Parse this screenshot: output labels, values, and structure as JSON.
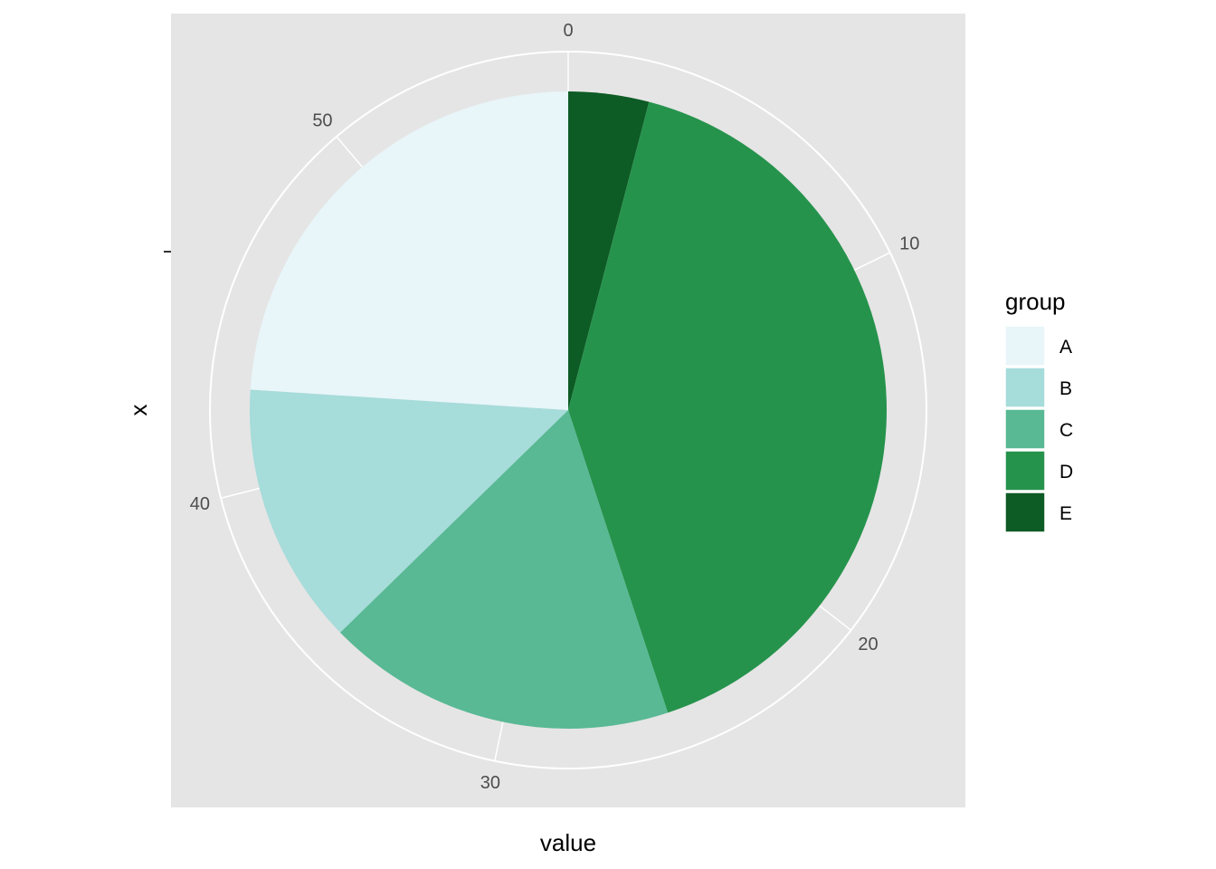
{
  "chart_data": {
    "type": "pie",
    "xlabel": "value",
    "ylabel": "x",
    "categories": [
      "A",
      "B",
      "C",
      "D",
      "E"
    ],
    "values": [
      13.5,
      7.5,
      10,
      23,
      2.3
    ],
    "colors": {
      "A": "#e8f5f9",
      "B": "#a6dcda",
      "C": "#58b994",
      "D": "#26934c",
      "E": "#0d5b25"
    },
    "slice_order": [
      "E",
      "D",
      "C",
      "B",
      "A"
    ],
    "angular_ticks": [
      0,
      10,
      20,
      30,
      40,
      50
    ],
    "angular_range": [
      0,
      56.3
    ],
    "legend": {
      "title": "group",
      "placement": "right"
    },
    "panel_background": "#e5e5e5",
    "grid": true,
    "grid_color": "#ffffff"
  }
}
